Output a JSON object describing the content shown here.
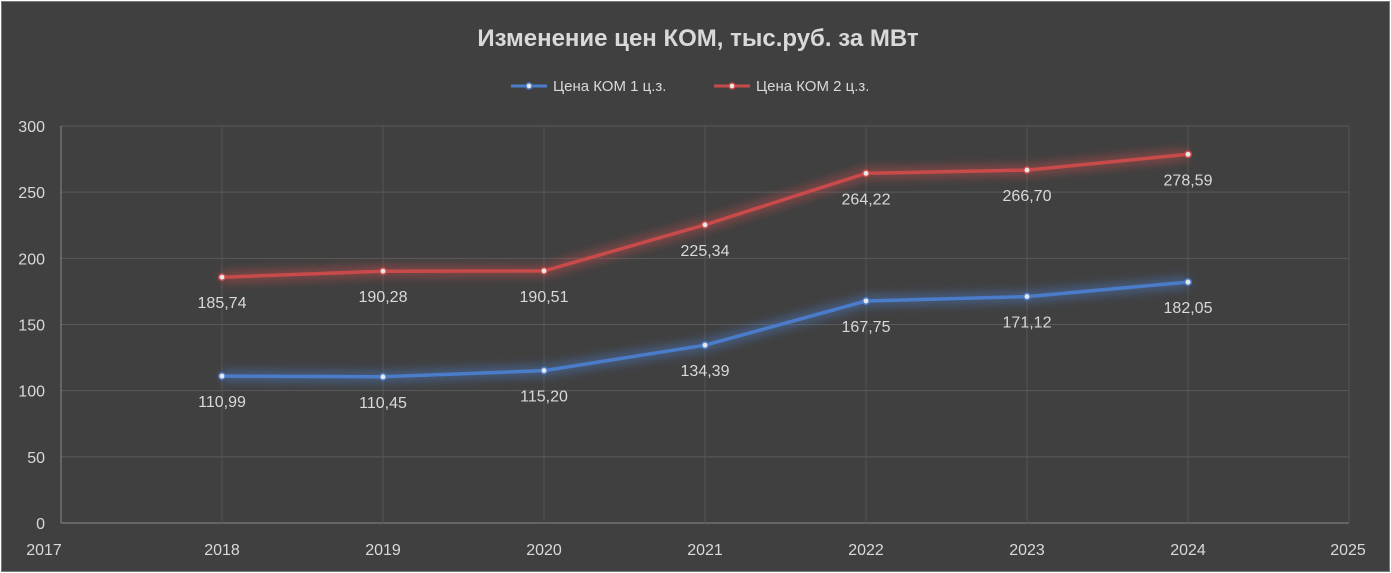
{
  "chart_data": {
    "type": "line",
    "title": "Изменение цен КОМ, тыс.руб. за МВт",
    "x": [
      2018,
      2019,
      2020,
      2021,
      2022,
      2023,
      2024
    ],
    "xlim": [
      2017,
      2025
    ],
    "x_ticks": [
      "2017",
      "2018",
      "2019",
      "2020",
      "2021",
      "2022",
      "2023",
      "2024",
      "2025"
    ],
    "ylim": [
      0,
      300
    ],
    "y_ticks": [
      "0",
      "50",
      "100",
      "150",
      "200",
      "250",
      "300"
    ],
    "grid": true,
    "legend_position": "top",
    "series": [
      {
        "name": "Цена КОМ 1 ц.з.",
        "color": "#4a7cc9",
        "values": [
          110.99,
          110.45,
          115.2,
          134.39,
          167.75,
          171.12,
          182.05
        ],
        "labels": [
          "110,99",
          "110,45",
          "115,20",
          "134,39",
          "167,75",
          "171,12",
          "182,05"
        ]
      },
      {
        "name": "Цена КОМ 2 ц.з.",
        "color": "#c84a4a",
        "values": [
          185.74,
          190.28,
          190.51,
          225.34,
          264.22,
          266.7,
          278.59
        ],
        "labels": [
          "185,74",
          "190,28",
          "190,51",
          "225,34",
          "264,22",
          "266,70",
          "278,59"
        ]
      }
    ]
  }
}
